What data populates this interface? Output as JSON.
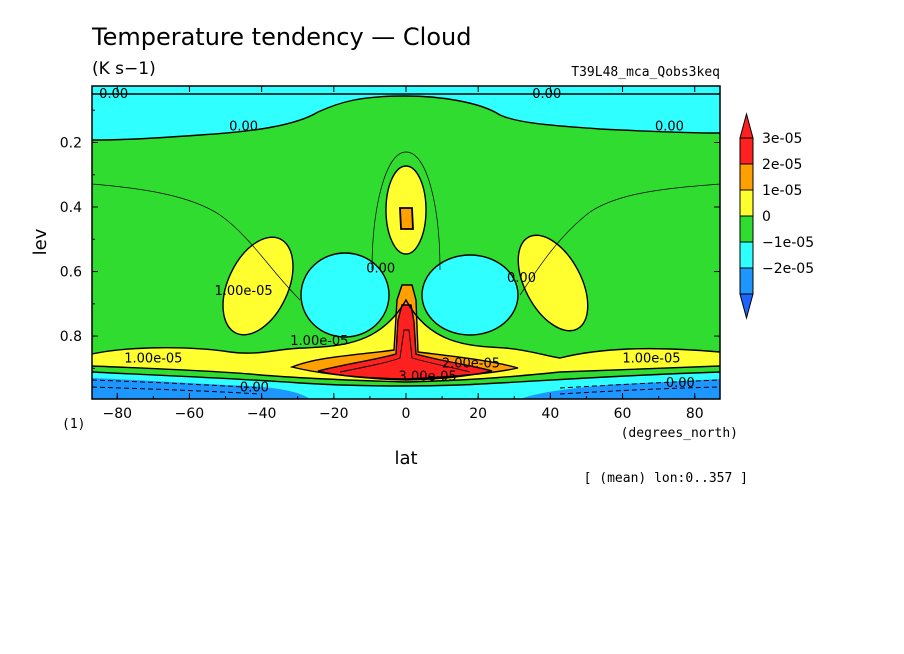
{
  "chart_data": {
    "type": "contour",
    "title": "Temperature tendency — Cloud",
    "units": "(K s−1)",
    "experiment": "T39L48_mca_Qobs3keq",
    "xlabel": "lat",
    "xunits": "(degrees_north)",
    "ylabel": "lev",
    "yunits": "(1)",
    "footer": "[ (mean) lon:0..357 ]",
    "xlim": [
      -87,
      87
    ],
    "ylim": [
      0.995,
      0.025
    ],
    "x_ticks": [
      -80,
      -60,
      -40,
      -20,
      0,
      20,
      40,
      60,
      80
    ],
    "y_ticks": [
      0.2,
      0.4,
      0.6,
      0.8
    ],
    "colorbar": {
      "levels": [
        {
          "label": "3e-05",
          "color": "#ff2020"
        },
        {
          "label": "2e-05",
          "color": "#ff9f00"
        },
        {
          "label": "1e-05",
          "color": "#ffff30"
        },
        {
          "label": "0",
          "color": "#30dc30"
        },
        {
          "label": "-1e-05",
          "color": "#30ffff"
        },
        {
          "label": "-2e-05",
          "color": "#1e96ff"
        }
      ],
      "over_color": "#ff2020",
      "under_color": "#1e64ff"
    },
    "colors": {
      "neg2": "#1e96ff",
      "neg1": "#30ffff",
      "zero": "#30dc30",
      "pos1": "#ffff30",
      "pos2": "#ff9f00",
      "pos3": "#ff2020"
    },
    "contour_labels": [
      {
        "text": "0.00",
        "lat": -81,
        "lev": 0.05
      },
      {
        "text": "0.00",
        "lat": -45,
        "lev": 0.15
      },
      {
        "text": "0.00",
        "lat": 39,
        "lev": 0.05
      },
      {
        "text": "0.00",
        "lat": 73,
        "lev": 0.15
      },
      {
        "text": "1.00e-05",
        "lat": -45,
        "lev": 0.66
      },
      {
        "text": "0.00",
        "lat": -7,
        "lev": 0.59
      },
      {
        "text": "0.00",
        "lat": 32,
        "lev": 0.62
      },
      {
        "text": "1.00e-05",
        "lat": -24,
        "lev": 0.815
      },
      {
        "text": "1.00e-05",
        "lat": -70,
        "lev": 0.87
      },
      {
        "text": "1.00e-05",
        "lat": 68,
        "lev": 0.87
      },
      {
        "text": "2.00e-05",
        "lat": 18,
        "lev": 0.885
      },
      {
        "text": "3.00e-05",
        "lat": 6,
        "lev": 0.925
      },
      {
        "text": "0.00",
        "lat": -42,
        "lev": 0.96
      },
      {
        "text": "0.00",
        "lat": 76,
        "lev": 0.945
      }
    ]
  }
}
